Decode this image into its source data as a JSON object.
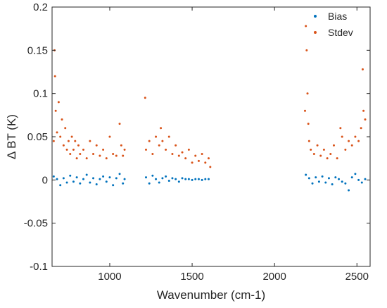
{
  "chart_data": {
    "type": "scatter",
    "title": "",
    "xlabel": "Wavenumber (cm-1)",
    "ylabel": "Δ BT (K)",
    "xlim": [
      650,
      2580
    ],
    "ylim": [
      -0.1,
      0.2
    ],
    "xticks": [
      1000,
      1500,
      2000,
      2500
    ],
    "yticks": [
      -0.1,
      -0.05,
      0,
      0.05,
      0.1,
      0.15,
      0.2
    ],
    "x_tick_labels": [
      "1000",
      "1500",
      "2000",
      "2500"
    ],
    "y_tick_labels": [
      "-0.1",
      "-0.05",
      "0",
      "0.05",
      "0.1",
      "0.15",
      "0.2"
    ],
    "grid": false,
    "legend_position": "top-right",
    "bands": [
      [
        650,
        1095
      ],
      [
        1210,
        1615
      ],
      [
        2180,
        2555
      ]
    ],
    "series": [
      {
        "name": "Bias",
        "color": "#0072BD",
        "points": [
          [
            660,
            0.004
          ],
          [
            680,
            0.001
          ],
          [
            700,
            -0.006
          ],
          [
            720,
            0.002
          ],
          [
            740,
            -0.003
          ],
          [
            760,
            0.005
          ],
          [
            780,
            -0.002
          ],
          [
            800,
            0.003
          ],
          [
            820,
            -0.004
          ],
          [
            840,
            0.001
          ],
          [
            860,
            0.006
          ],
          [
            880,
            -0.003
          ],
          [
            900,
            0.002
          ],
          [
            920,
            -0.005
          ],
          [
            940,
            0.001
          ],
          [
            960,
            0.004
          ],
          [
            980,
            -0.002
          ],
          [
            1000,
            0.003
          ],
          [
            1020,
            -0.006
          ],
          [
            1040,
            0.002
          ],
          [
            1060,
            0.007
          ],
          [
            1080,
            -0.004
          ],
          [
            1090,
            0.001
          ],
          [
            1220,
            0.003
          ],
          [
            1240,
            -0.004
          ],
          [
            1260,
            0.005
          ],
          [
            1280,
            0.001
          ],
          [
            1300,
            -0.003
          ],
          [
            1320,
            0.002
          ],
          [
            1340,
            0.004
          ],
          [
            1360,
            -0.001
          ],
          [
            1380,
            0.002
          ],
          [
            1400,
            0.001
          ],
          [
            1420,
            -0.002
          ],
          [
            1440,
            0.002
          ],
          [
            1460,
            0.001
          ],
          [
            1480,
            0.001
          ],
          [
            1500,
            0.0
          ],
          [
            1520,
            0.001
          ],
          [
            1540,
            0.001
          ],
          [
            1560,
            0.0
          ],
          [
            1580,
            0.001
          ],
          [
            1600,
            0.001
          ],
          [
            2190,
            0.006
          ],
          [
            2210,
            0.002
          ],
          [
            2230,
            -0.004
          ],
          [
            2250,
            0.003
          ],
          [
            2270,
            -0.002
          ],
          [
            2290,
            0.004
          ],
          [
            2310,
            -0.003
          ],
          [
            2330,
            0.002
          ],
          [
            2350,
            -0.005
          ],
          [
            2370,
            0.003
          ],
          [
            2390,
            0.001
          ],
          [
            2410,
            -0.002
          ],
          [
            2430,
            -0.004
          ],
          [
            2450,
            -0.012
          ],
          [
            2470,
            0.003
          ],
          [
            2490,
            0.007
          ],
          [
            2510,
            0.0
          ],
          [
            2530,
            -0.003
          ],
          [
            2550,
            0.001
          ]
        ]
      },
      {
        "name": "Stdev",
        "color": "#D95319",
        "points": [
          [
            660,
            0.045
          ],
          [
            665,
            0.15
          ],
          [
            668,
            0.12
          ],
          [
            672,
            0.08
          ],
          [
            680,
            0.055
          ],
          [
            690,
            0.09
          ],
          [
            700,
            0.05
          ],
          [
            710,
            0.07
          ],
          [
            720,
            0.04
          ],
          [
            730,
            0.06
          ],
          [
            740,
            0.035
          ],
          [
            750,
            0.045
          ],
          [
            760,
            0.03
          ],
          [
            770,
            0.05
          ],
          [
            780,
            0.035
          ],
          [
            790,
            0.045
          ],
          [
            800,
            0.025
          ],
          [
            810,
            0.04
          ],
          [
            820,
            0.03
          ],
          [
            840,
            0.035
          ],
          [
            860,
            0.025
          ],
          [
            880,
            0.045
          ],
          [
            900,
            0.03
          ],
          [
            920,
            0.04
          ],
          [
            940,
            0.028
          ],
          [
            960,
            0.035
          ],
          [
            980,
            0.025
          ],
          [
            1000,
            0.05
          ],
          [
            1020,
            0.03
          ],
          [
            1040,
            0.028
          ],
          [
            1060,
            0.065
          ],
          [
            1070,
            0.04
          ],
          [
            1080,
            0.028
          ],
          [
            1090,
            0.035
          ],
          [
            1215,
            0.095
          ],
          [
            1220,
            0.035
          ],
          [
            1240,
            0.045
          ],
          [
            1260,
            0.03
          ],
          [
            1280,
            0.05
          ],
          [
            1300,
            0.04
          ],
          [
            1310,
            0.06
          ],
          [
            1320,
            0.045
          ],
          [
            1340,
            0.035
          ],
          [
            1360,
            0.05
          ],
          [
            1380,
            0.03
          ],
          [
            1400,
            0.04
          ],
          [
            1420,
            0.028
          ],
          [
            1440,
            0.032
          ],
          [
            1460,
            0.025
          ],
          [
            1480,
            0.035
          ],
          [
            1500,
            0.02
          ],
          [
            1520,
            0.028
          ],
          [
            1540,
            0.022
          ],
          [
            1560,
            0.03
          ],
          [
            1580,
            0.02
          ],
          [
            1600,
            0.025
          ],
          [
            1610,
            0.015
          ],
          [
            2185,
            0.08
          ],
          [
            2190,
            0.178
          ],
          [
            2195,
            0.15
          ],
          [
            2200,
            0.1
          ],
          [
            2205,
            0.065
          ],
          [
            2210,
            0.045
          ],
          [
            2220,
            0.035
          ],
          [
            2240,
            0.03
          ],
          [
            2260,
            0.04
          ],
          [
            2280,
            0.028
          ],
          [
            2300,
            0.035
          ],
          [
            2320,
            0.025
          ],
          [
            2340,
            0.03
          ],
          [
            2360,
            0.04
          ],
          [
            2380,
            0.025
          ],
          [
            2400,
            0.06
          ],
          [
            2410,
            0.05
          ],
          [
            2430,
            0.035
          ],
          [
            2450,
            0.045
          ],
          [
            2470,
            0.04
          ],
          [
            2490,
            0.05
          ],
          [
            2510,
            0.045
          ],
          [
            2525,
            0.06
          ],
          [
            2535,
            0.128
          ],
          [
            2540,
            0.08
          ],
          [
            2550,
            0.07
          ]
        ]
      }
    ]
  }
}
